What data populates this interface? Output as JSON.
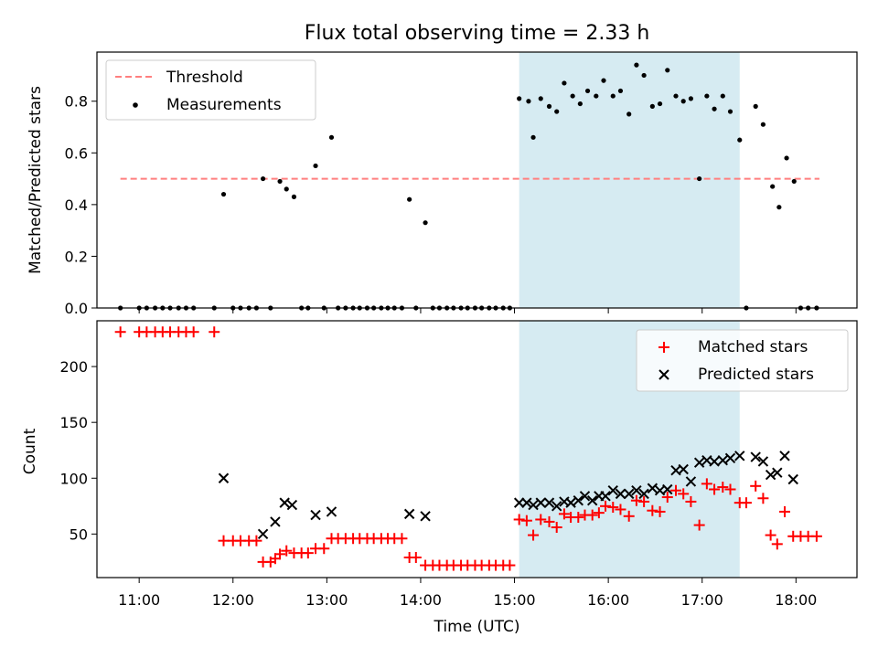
{
  "title": "Flux total observing time = 2.33 h",
  "colors": {
    "threshold": "#ff7f7f",
    "measurement": "#000000",
    "matched": "#ff0000",
    "predicted": "#000000",
    "highlight": "#add8e6"
  },
  "chart_data": [
    {
      "type": "scatter",
      "ylabel": "Matched/Predicted stars",
      "xlim": [
        10.55,
        18.65
      ],
      "ylim": [
        0.0,
        0.99
      ],
      "yticks": [
        0.0,
        0.2,
        0.4,
        0.6,
        0.8
      ],
      "ytick_labels": [
        "0.0",
        "0.2",
        "0.4",
        "0.6",
        "0.8"
      ],
      "highlight_span": [
        15.05,
        17.4
      ],
      "threshold": {
        "value": 0.5,
        "x_range": [
          10.8,
          18.25
        ]
      },
      "legend": {
        "position": "upper-left",
        "entries": [
          "Threshold",
          "Measurements"
        ]
      },
      "series": [
        {
          "name": "Measurements",
          "marker": "dot",
          "points": [
            [
              10.8,
              0
            ],
            [
              11.0,
              0
            ],
            [
              11.08,
              0
            ],
            [
              11.17,
              0
            ],
            [
              11.25,
              0
            ],
            [
              11.33,
              0
            ],
            [
              11.42,
              0
            ],
            [
              11.5,
              0
            ],
            [
              11.58,
              0
            ],
            [
              11.8,
              0
            ],
            [
              11.9,
              0.44
            ],
            [
              12.0,
              0
            ],
            [
              12.08,
              0
            ],
            [
              12.17,
              0
            ],
            [
              12.25,
              0
            ],
            [
              12.32,
              0.5
            ],
            [
              12.4,
              0
            ],
            [
              12.5,
              0.49
            ],
            [
              12.57,
              0.46
            ],
            [
              12.65,
              0.43
            ],
            [
              12.73,
              0
            ],
            [
              12.8,
              0
            ],
            [
              12.88,
              0.55
            ],
            [
              12.97,
              0
            ],
            [
              13.05,
              0.66
            ],
            [
              13.12,
              0
            ],
            [
              13.2,
              0
            ],
            [
              13.28,
              0
            ],
            [
              13.35,
              0
            ],
            [
              13.43,
              0
            ],
            [
              13.5,
              0
            ],
            [
              13.58,
              0
            ],
            [
              13.65,
              0
            ],
            [
              13.72,
              0
            ],
            [
              13.8,
              0
            ],
            [
              13.88,
              0.42
            ],
            [
              13.95,
              0
            ],
            [
              14.05,
              0.33
            ],
            [
              14.13,
              0
            ],
            [
              14.2,
              0
            ],
            [
              14.28,
              0
            ],
            [
              14.35,
              0
            ],
            [
              14.43,
              0
            ],
            [
              14.5,
              0
            ],
            [
              14.58,
              0
            ],
            [
              14.65,
              0
            ],
            [
              14.73,
              0
            ],
            [
              14.8,
              0
            ],
            [
              14.88,
              0
            ],
            [
              14.95,
              0
            ],
            [
              15.05,
              0.81
            ],
            [
              15.15,
              0.8
            ],
            [
              15.2,
              0.66
            ],
            [
              15.28,
              0.81
            ],
            [
              15.37,
              0.78
            ],
            [
              15.45,
              0.76
            ],
            [
              15.53,
              0.87
            ],
            [
              15.62,
              0.82
            ],
            [
              15.7,
              0.79
            ],
            [
              15.78,
              0.84
            ],
            [
              15.87,
              0.82
            ],
            [
              15.95,
              0.88
            ],
            [
              16.05,
              0.82
            ],
            [
              16.13,
              0.84
            ],
            [
              16.22,
              0.75
            ],
            [
              16.3,
              0.94
            ],
            [
              16.38,
              0.9
            ],
            [
              16.47,
              0.78
            ],
            [
              16.55,
              0.79
            ],
            [
              16.63,
              0.92
            ],
            [
              16.72,
              0.82
            ],
            [
              16.8,
              0.8
            ],
            [
              16.88,
              0.81
            ],
            [
              16.97,
              0.5
            ],
            [
              17.05,
              0.82
            ],
            [
              17.13,
              0.77
            ],
            [
              17.22,
              0.82
            ],
            [
              17.3,
              0.76
            ],
            [
              17.4,
              0.65
            ],
            [
              17.47,
              0
            ],
            [
              17.57,
              0.78
            ],
            [
              17.65,
              0.71
            ],
            [
              17.75,
              0.47
            ],
            [
              17.82,
              0.39
            ],
            [
              17.9,
              0.58
            ],
            [
              17.98,
              0.49
            ],
            [
              18.05,
              0
            ],
            [
              18.13,
              0
            ],
            [
              18.22,
              0
            ]
          ]
        }
      ]
    },
    {
      "type": "scatter",
      "xlabel": "Time (UTC)",
      "ylabel": "Count",
      "xlim": [
        10.55,
        18.65
      ],
      "ylim": [
        11,
        241
      ],
      "xticks": [
        11,
        12,
        13,
        14,
        15,
        16,
        17,
        18
      ],
      "xtick_labels": [
        "11:00",
        "12:00",
        "13:00",
        "14:00",
        "15:00",
        "16:00",
        "17:00",
        "18:00"
      ],
      "yticks": [
        50,
        100,
        150,
        200
      ],
      "ytick_labels": [
        "50",
        "100",
        "150",
        "200"
      ],
      "highlight_span": [
        15.05,
        17.4
      ],
      "legend": {
        "position": "upper-right",
        "entries": [
          "Matched stars",
          "Predicted stars"
        ]
      },
      "series": [
        {
          "name": "Matched stars",
          "marker": "plus",
          "points": [
            [
              10.8,
              231
            ],
            [
              11.0,
              231
            ],
            [
              11.08,
              231
            ],
            [
              11.17,
              231
            ],
            [
              11.25,
              231
            ],
            [
              11.33,
              231
            ],
            [
              11.42,
              231
            ],
            [
              11.5,
              231
            ],
            [
              11.58,
              231
            ],
            [
              11.8,
              231
            ],
            [
              11.9,
              44
            ],
            [
              12.0,
              44
            ],
            [
              12.08,
              44
            ],
            [
              12.17,
              44
            ],
            [
              12.25,
              44
            ],
            [
              12.32,
              25
            ],
            [
              12.4,
              25
            ],
            [
              12.45,
              28
            ],
            [
              12.5,
              32
            ],
            [
              12.57,
              35
            ],
            [
              12.65,
              33
            ],
            [
              12.73,
              33
            ],
            [
              12.8,
              33
            ],
            [
              12.88,
              37
            ],
            [
              12.97,
              37
            ],
            [
              13.05,
              46
            ],
            [
              13.12,
              46
            ],
            [
              13.2,
              46
            ],
            [
              13.28,
              46
            ],
            [
              13.35,
              46
            ],
            [
              13.43,
              46
            ],
            [
              13.5,
              46
            ],
            [
              13.58,
              46
            ],
            [
              13.65,
              46
            ],
            [
              13.72,
              46
            ],
            [
              13.8,
              46
            ],
            [
              13.88,
              29
            ],
            [
              13.95,
              29
            ],
            [
              14.05,
              22
            ],
            [
              14.13,
              22
            ],
            [
              14.2,
              22
            ],
            [
              14.28,
              22
            ],
            [
              14.35,
              22
            ],
            [
              14.43,
              22
            ],
            [
              14.5,
              22
            ],
            [
              14.58,
              22
            ],
            [
              14.65,
              22
            ],
            [
              14.73,
              22
            ],
            [
              14.8,
              22
            ],
            [
              14.88,
              22
            ],
            [
              14.95,
              22
            ],
            [
              15.05,
              63
            ],
            [
              15.13,
              62
            ],
            [
              15.2,
              49
            ],
            [
              15.28,
              63
            ],
            [
              15.37,
              61
            ],
            [
              15.45,
              56
            ],
            [
              15.53,
              68
            ],
            [
              15.6,
              65
            ],
            [
              15.68,
              65
            ],
            [
              15.75,
              67
            ],
            [
              15.83,
              67
            ],
            [
              15.9,
              69
            ],
            [
              15.97,
              75
            ],
            [
              16.05,
              74
            ],
            [
              16.13,
              72
            ],
            [
              16.22,
              66
            ],
            [
              16.3,
              80
            ],
            [
              16.38,
              79
            ],
            [
              16.47,
              71
            ],
            [
              16.55,
              70
            ],
            [
              16.63,
              83
            ],
            [
              16.72,
              89
            ],
            [
              16.8,
              86
            ],
            [
              16.88,
              79
            ],
            [
              16.97,
              58
            ],
            [
              17.05,
              95
            ],
            [
              17.13,
              90
            ],
            [
              17.22,
              92
            ],
            [
              17.3,
              90
            ],
            [
              17.4,
              78
            ],
            [
              17.47,
              78
            ],
            [
              17.57,
              93
            ],
            [
              17.65,
              82
            ],
            [
              17.73,
              49
            ],
            [
              17.8,
              41
            ],
            [
              17.88,
              70
            ],
            [
              17.97,
              48
            ],
            [
              18.05,
              48
            ],
            [
              18.13,
              48
            ],
            [
              18.22,
              48
            ]
          ]
        },
        {
          "name": "Predicted stars",
          "marker": "x",
          "points": [
            [
              11.9,
              100
            ],
            [
              12.32,
              50
            ],
            [
              12.45,
              61
            ],
            [
              12.55,
              78
            ],
            [
              12.63,
              76
            ],
            [
              12.88,
              67
            ],
            [
              13.05,
              70
            ],
            [
              13.88,
              68
            ],
            [
              14.05,
              66
            ],
            [
              15.05,
              78
            ],
            [
              15.13,
              78
            ],
            [
              15.2,
              76
            ],
            [
              15.28,
              78
            ],
            [
              15.37,
              78
            ],
            [
              15.45,
              75
            ],
            [
              15.53,
              79
            ],
            [
              15.6,
              78
            ],
            [
              15.68,
              80
            ],
            [
              15.75,
              84
            ],
            [
              15.83,
              80
            ],
            [
              15.9,
              84
            ],
            [
              15.97,
              84
            ],
            [
              16.05,
              89
            ],
            [
              16.13,
              86
            ],
            [
              16.22,
              86
            ],
            [
              16.3,
              89
            ],
            [
              16.38,
              86
            ],
            [
              16.47,
              91
            ],
            [
              16.55,
              89
            ],
            [
              16.63,
              90
            ],
            [
              16.72,
              107
            ],
            [
              16.8,
              108
            ],
            [
              16.88,
              97
            ],
            [
              16.97,
              114
            ],
            [
              17.05,
              116
            ],
            [
              17.13,
              115
            ],
            [
              17.22,
              116
            ],
            [
              17.3,
              118
            ],
            [
              17.4,
              120
            ],
            [
              17.57,
              119
            ],
            [
              17.65,
              115
            ],
            [
              17.73,
              103
            ],
            [
              17.8,
              105
            ],
            [
              17.88,
              120
            ],
            [
              17.97,
              99
            ]
          ]
        }
      ]
    }
  ]
}
